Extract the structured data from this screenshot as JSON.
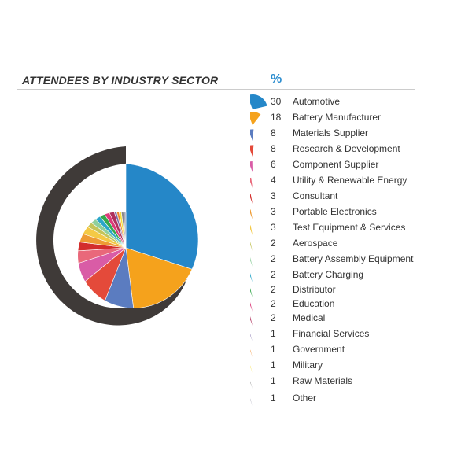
{
  "title": "ATTENDEES BY INDUSTRY SECTOR",
  "percent_header": "%",
  "chart_data": {
    "type": "pie",
    "title": "ATTENDEES BY INDUSTRY SECTOR",
    "unit": "%",
    "categories": [
      "Automotive",
      "Battery Manufacturer",
      "Materials Supplier",
      "Research & Development",
      "Component Supplier",
      "Utility & Renewable Energy",
      "Consultant",
      "Portable Electronics",
      "Test Equipment & Services",
      "Aerospace",
      "Battery Assembly Equipment",
      "Battery Charging",
      "Distributor",
      "Education",
      "Medical",
      "Financial Services",
      "Government",
      "Military",
      "Raw Materials",
      "Other"
    ],
    "values": [
      30,
      18,
      8,
      8,
      6,
      4,
      3,
      3,
      3,
      2,
      2,
      2,
      2,
      2,
      2,
      1,
      1,
      1,
      1,
      1
    ],
    "colors": [
      "#2587c8",
      "#f5a21c",
      "#5b7cc0",
      "#e44a3a",
      "#d95ca6",
      "#e9687a",
      "#d32e2c",
      "#ee9b34",
      "#f4c945",
      "#c4c45a",
      "#8fcf9c",
      "#2aa6c9",
      "#35a84c",
      "#dc3b7a",
      "#b0305c",
      "#7c6aa8",
      "#f08a2a",
      "#f6e03a",
      "#8a8a8a",
      "#a9a9b8"
    ],
    "legend_position": "right"
  }
}
